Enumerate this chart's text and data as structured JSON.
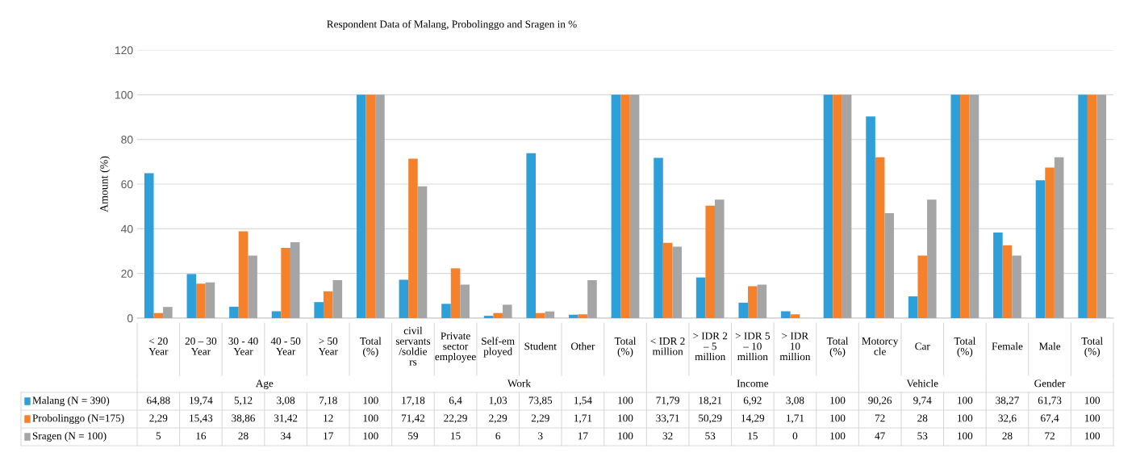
{
  "chart_data": {
    "type": "bar",
    "title": "Respondent Data of Malang, Probolinggo and Sragen in %",
    "ylabel": "Amount (%)",
    "categories": [
      "< 20 Year",
      "20 – 30 Year",
      "30 - 40 Year",
      "40 - 50 Year",
      "> 50 Year",
      "Total (%)",
      "civil servants /soldiers",
      "Private sector employee",
      "Self-employed",
      "Student",
      "Other",
      "Total (%)",
      "< IDR 2 million",
      "> IDR 2 – 5 million",
      "> IDR 5 – 10 million",
      "> IDR 10 million",
      "Total (%)",
      "Motorcycle",
      "Car",
      "Total (%)",
      "Female",
      "Male",
      "Total (%)"
    ],
    "series": [
      {
        "name": "Malang (N = 390)",
        "color": "#2e9fd8",
        "values": [
          64.88,
          19.74,
          5.12,
          3.08,
          7.18,
          100,
          17.18,
          6.4,
          1.03,
          73.85,
          1.54,
          100,
          71.79,
          18.21,
          6.92,
          3.08,
          100,
          90.26,
          9.74,
          100,
          38.27,
          61.73,
          100
        ],
        "value_labels": [
          "64,88",
          "19,74",
          "5,12",
          "3,08",
          "7,18",
          "100",
          "17,18",
          "6,4",
          "1,03",
          "73,85",
          "1,54",
          "100",
          "71,79",
          "18,21",
          "6,92",
          "3,08",
          "100",
          "90,26",
          "9,74",
          "100",
          "38,27",
          "61,73",
          "100"
        ]
      },
      {
        "name": "Probolinggo (N=175)",
        "color": "#f5822a",
        "values": [
          2.29,
          15.43,
          38.86,
          31.42,
          12,
          100,
          71.42,
          22.29,
          2.29,
          2.29,
          1.71,
          100,
          33.71,
          50.29,
          14.29,
          1.71,
          100,
          72,
          28,
          100,
          32.6,
          67.4,
          100
        ],
        "value_labels": [
          "2,29",
          "15,43",
          "38,86",
          "31,42",
          "12",
          "100",
          "71,42",
          "22,29",
          "2,29",
          "2,29",
          "1,71",
          "100",
          "33,71",
          "50,29",
          "14,29",
          "1,71",
          "100",
          "72",
          "28",
          "100",
          "32,6",
          "67,4",
          "100"
        ]
      },
      {
        "name": "Sragen (N = 100)",
        "color": "#a5a5a5",
        "values": [
          5,
          16,
          28,
          34,
          17,
          100,
          59,
          15,
          6,
          3,
          17,
          100,
          32,
          53,
          15,
          0,
          100,
          47,
          53,
          100,
          28,
          72,
          100
        ],
        "value_labels": [
          "5",
          "16",
          "28",
          "34",
          "17",
          "100",
          "59",
          "15",
          "6",
          "3",
          "17",
          "100",
          "32",
          "53",
          "15",
          "0",
          "100",
          "47",
          "53",
          "100",
          "28",
          "72",
          "100"
        ]
      }
    ],
    "ylim": [
      0,
      120
    ],
    "yticks": [
      0,
      20,
      40,
      60,
      80,
      100,
      120
    ],
    "grid": "y",
    "legend": "bottom left",
    "annotations": [
      "Age",
      "Work",
      "Income",
      "Vehicle",
      "Gender"
    ]
  }
}
